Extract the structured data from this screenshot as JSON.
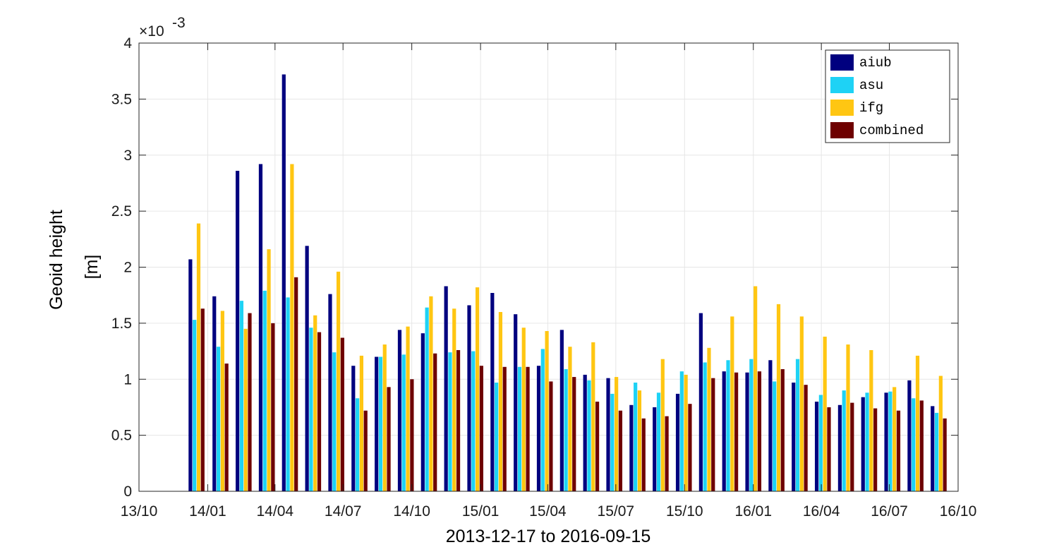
{
  "chart_data": {
    "type": "bar",
    "xlabel": "2013-12-17 to 2016-09-15",
    "ylabel_lines": [
      "Geoid height",
      "[m]"
    ],
    "y_exponent_label": "×10",
    "y_exponent_value": "-3",
    "ylim": [
      0,
      4
    ],
    "y_ticks": [
      0,
      0.5,
      1,
      1.5,
      2,
      2.5,
      3,
      3.5,
      4
    ],
    "y_tick_labels": [
      "0",
      "0.5",
      "1",
      "1.5",
      "2",
      "2.5",
      "3",
      "3.5",
      "4"
    ],
    "xlim": [
      "2013-10-01",
      "2016-10-01"
    ],
    "x_ticks": [
      "2013-10-01",
      "2014-01-01",
      "2014-04-01",
      "2014-07-01",
      "2014-10-01",
      "2015-01-01",
      "2015-04-01",
      "2015-07-01",
      "2015-10-01",
      "2016-01-01",
      "2016-04-01",
      "2016-07-01",
      "2016-10-01"
    ],
    "x_tick_labels": [
      "13/10",
      "14/01",
      "14/04",
      "14/07",
      "14/10",
      "15/01",
      "15/04",
      "15/07",
      "15/10",
      "16/01",
      "16/04",
      "16/07",
      "16/10"
    ],
    "grid": true,
    "legend_position": "top-right",
    "dates": [
      "2013-12-17",
      "2014-01-18",
      "2014-02-18",
      "2014-03-21",
      "2014-04-21",
      "2014-05-22",
      "2014-06-22",
      "2014-07-23",
      "2014-08-23",
      "2014-09-23",
      "2014-10-24",
      "2014-11-24",
      "2014-12-25",
      "2015-01-25",
      "2015-02-25",
      "2015-03-28",
      "2015-04-28",
      "2015-05-29",
      "2015-06-29",
      "2015-07-30",
      "2015-08-30",
      "2015-09-30",
      "2015-10-31",
      "2015-12-01",
      "2016-01-01",
      "2016-02-01",
      "2016-03-03",
      "2016-04-03",
      "2016-05-04",
      "2016-06-04",
      "2016-07-05",
      "2016-08-05",
      "2016-09-05"
    ],
    "series": [
      {
        "name": "aiub",
        "color": "#00007f",
        "values": [
          2.07,
          1.74,
          2.86,
          2.92,
          3.72,
          2.19,
          1.76,
          1.12,
          1.2,
          1.44,
          1.41,
          1.83,
          1.66,
          1.77,
          1.58,
          1.12,
          1.44,
          1.04,
          1.01,
          0.77,
          0.75,
          0.87,
          1.59,
          1.07,
          1.06,
          1.17,
          0.97,
          0.8,
          0.77,
          0.84,
          0.88,
          0.99,
          0.76
        ]
      },
      {
        "name": "asu",
        "color": "#1ed2f5",
        "values": [
          1.53,
          1.29,
          1.7,
          1.79,
          1.73,
          1.46,
          1.24,
          0.83,
          1.2,
          1.22,
          1.64,
          1.24,
          1.25,
          0.97,
          1.11,
          1.27,
          1.09,
          0.99,
          0.87,
          0.97,
          0.88,
          1.07,
          1.15,
          1.17,
          1.18,
          0.98,
          1.18,
          0.86,
          0.9,
          0.88,
          0.89,
          0.83,
          0.7
        ]
      },
      {
        "name": "ifg",
        "color": "#ffc612",
        "values": [
          2.39,
          1.61,
          1.45,
          2.16,
          2.92,
          1.57,
          1.96,
          1.21,
          1.31,
          1.47,
          1.74,
          1.63,
          1.82,
          1.6,
          1.46,
          1.43,
          1.29,
          1.33,
          1.02,
          0.9,
          1.18,
          1.04,
          1.28,
          1.56,
          1.83,
          1.67,
          1.56,
          1.38,
          1.31,
          1.26,
          0.93,
          1.21,
          1.03
        ]
      },
      {
        "name": "combined",
        "color": "#6e0000",
        "values": [
          1.63,
          1.14,
          1.59,
          1.5,
          1.91,
          1.42,
          1.37,
          0.72,
          0.93,
          1.0,
          1.23,
          1.26,
          1.12,
          1.11,
          1.11,
          0.98,
          1.02,
          0.8,
          0.72,
          0.65,
          0.67,
          0.78,
          1.01,
          1.06,
          1.07,
          1.09,
          0.95,
          0.75,
          0.79,
          0.74,
          0.72,
          0.81,
          0.65
        ]
      }
    ]
  }
}
